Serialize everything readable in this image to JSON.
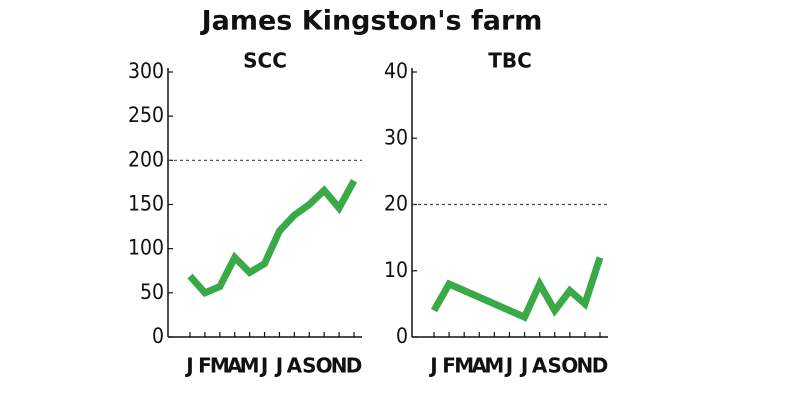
{
  "title": "James Kingston's farm",
  "chart_data": [
    {
      "type": "line",
      "title": "SCC",
      "categories": [
        "J",
        "F",
        "M",
        "A",
        "M",
        "J",
        "J",
        "A",
        "S",
        "O",
        "N",
        "D"
      ],
      "values": [
        69,
        50,
        57,
        90,
        73,
        83,
        120,
        138,
        150,
        166,
        146,
        177
      ],
      "color": "#3aaa48",
      "ylim": [
        0,
        300
      ],
      "yticks": [
        0,
        50,
        100,
        150,
        200,
        250,
        300
      ],
      "reference_line": 200
    },
    {
      "type": "line",
      "title": "TBC",
      "categories": [
        "J",
        "F",
        "M",
        "A",
        "M",
        "J",
        "J",
        "A",
        "S",
        "O",
        "N",
        "D"
      ],
      "values": [
        4,
        8,
        7,
        6,
        5,
        4,
        3,
        8,
        4,
        7,
        5,
        12
      ],
      "color": "#3aaa48",
      "ylim": [
        0,
        40
      ],
      "yticks": [
        0,
        10,
        20,
        30,
        40
      ],
      "reference_line": 20
    }
  ]
}
